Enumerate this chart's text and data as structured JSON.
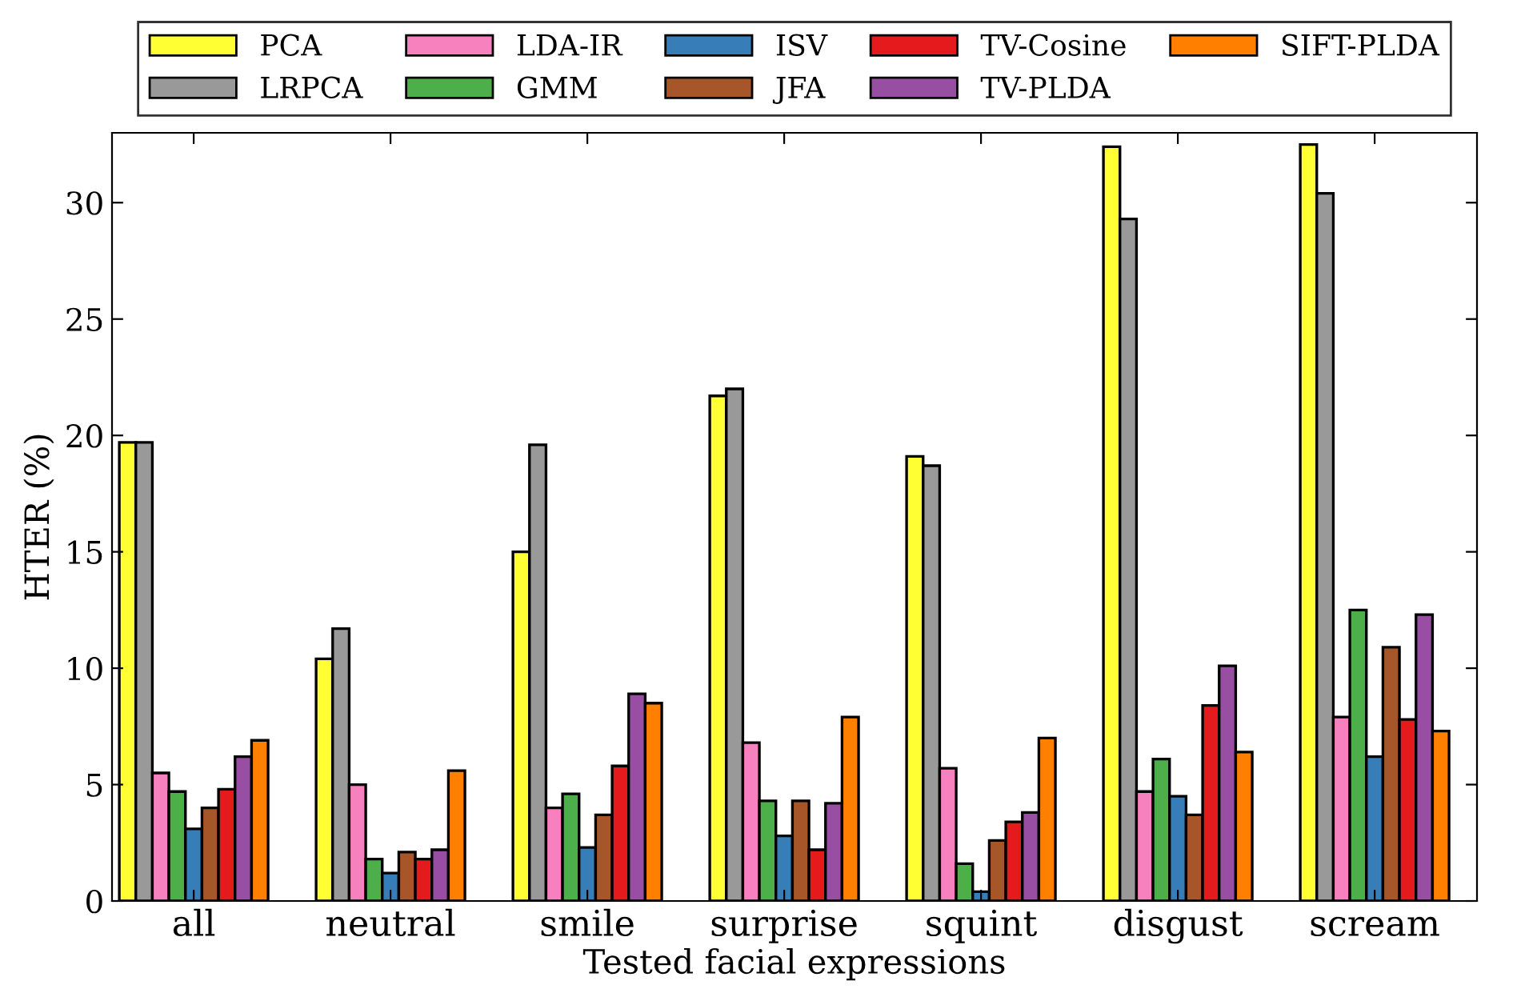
{
  "chart_data": {
    "type": "bar",
    "xlabel": "Tested facial expressions",
    "ylabel": "HTER (%)",
    "categories": [
      "all",
      "neutral",
      "smile",
      "surprise",
      "squint",
      "disgust",
      "scream"
    ],
    "series": [
      {
        "name": "PCA",
        "color": "#ffff33",
        "values": [
          19.7,
          10.4,
          15.0,
          21.7,
          19.1,
          32.4,
          32.5
        ]
      },
      {
        "name": "LRPCA",
        "color": "#999999",
        "values": [
          19.7,
          11.7,
          19.6,
          22.0,
          18.7,
          29.3,
          30.4
        ]
      },
      {
        "name": "LDA-IR",
        "color": "#f781bf",
        "values": [
          5.5,
          5.0,
          4.0,
          6.8,
          5.7,
          4.7,
          7.9
        ]
      },
      {
        "name": "GMM",
        "color": "#4daf4a",
        "values": [
          4.7,
          1.8,
          4.6,
          4.3,
          1.6,
          6.1,
          12.5
        ]
      },
      {
        "name": "ISV",
        "color": "#377eb8",
        "values": [
          3.1,
          1.2,
          2.3,
          2.8,
          0.4,
          4.5,
          6.2
        ]
      },
      {
        "name": "JFA",
        "color": "#a65628",
        "values": [
          4.0,
          2.1,
          3.7,
          4.3,
          2.6,
          3.7,
          10.9
        ]
      },
      {
        "name": "TV-Cosine",
        "color": "#e41a1c",
        "values": [
          4.8,
          1.8,
          5.8,
          2.2,
          3.4,
          8.4,
          7.8
        ]
      },
      {
        "name": "TV-PLDA",
        "color": "#984ea3",
        "values": [
          6.2,
          2.2,
          8.9,
          4.2,
          3.8,
          10.1,
          12.3
        ]
      },
      {
        "name": "SIFT-PLDA",
        "color": "#ff7f00",
        "values": [
          6.9,
          5.6,
          8.5,
          7.9,
          7.0,
          6.4,
          7.3
        ]
      }
    ],
    "ylim": [
      0,
      33
    ],
    "yticks": [
      0,
      5,
      10,
      15,
      20,
      25,
      30
    ],
    "grid": false,
    "legend": "top"
  }
}
